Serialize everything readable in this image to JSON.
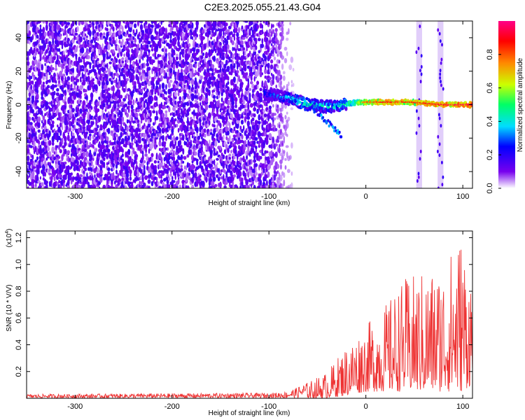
{
  "title": "C2E3.2025.055.21.43.G04",
  "chart_data": [
    {
      "type": "heatmap",
      "xlabel": "Height of straight line (km)",
      "ylabel": "Frequency (Hz)",
      "xlim": [
        -350,
        110
      ],
      "ylim": [
        -50,
        50
      ],
      "x_ticks": [
        -300,
        -200,
        -100,
        0,
        100
      ],
      "y_ticks": [
        -40,
        -20,
        0,
        20,
        40
      ],
      "colorbar": {
        "label": "Normalized spectral amplitude",
        "range": [
          0.0,
          1.0
        ],
        "ticks": [
          "0.0",
          "0.2",
          "0.4",
          "0.6",
          "0.8"
        ],
        "colormap": [
          "#ffffff",
          "#7700ee",
          "#0000ff",
          "#00ddff",
          "#00ff66",
          "#ccff00",
          "#ff8800",
          "#ff0000",
          "#ff0088"
        ]
      },
      "features": {
        "noise_region_x": [
          -350,
          -80
        ],
        "signal_track": [
          {
            "x": -105,
            "freq": 7,
            "amp": 0.35
          },
          {
            "x": -90,
            "freq": 5,
            "amp": 0.4
          },
          {
            "x": -75,
            "freq": 3,
            "amp": 0.5
          },
          {
            "x": -60,
            "freq": 0,
            "amp": 0.55
          },
          {
            "x": -45,
            "freq": -1,
            "amp": 0.5
          },
          {
            "x": -30,
            "freq": -1,
            "amp": 0.5
          },
          {
            "x": -15,
            "freq": 1,
            "amp": 0.6
          },
          {
            "x": 0,
            "freq": 1.5,
            "amp": 0.75
          },
          {
            "x": 20,
            "freq": 1.5,
            "amp": 0.85
          },
          {
            "x": 45,
            "freq": 1.5,
            "amp": 0.8
          },
          {
            "x": 80,
            "freq": 0,
            "amp": 0.9
          },
          {
            "x": 110,
            "freq": 0,
            "amp": 0.9
          }
        ],
        "vertical_bands_x": [
          [
            52,
            58
          ],
          [
            74,
            80
          ]
        ]
      }
    },
    {
      "type": "line",
      "xlabel": "Height of straight line (km)",
      "ylabel": "SNR (10 * V/V)",
      "y_multiplier": "(x10",
      "y_multiplier_exp": "4",
      "y_multiplier_close": ")",
      "xlim": [
        -350,
        110
      ],
      "ylim": [
        0,
        1.25
      ],
      "x_ticks": [
        -300,
        -200,
        -100,
        0,
        100
      ],
      "y_ticks": [
        "0.2",
        "0.4",
        "0.6",
        "0.8",
        "1.0",
        "1.2"
      ],
      "series": [
        {
          "color": "#ee3333",
          "envelope": [
            {
              "x": -350,
              "low": 0.0,
              "high": 0.03
            },
            {
              "x": -100,
              "low": 0.0,
              "high": 0.04
            },
            {
              "x": -80,
              "low": 0.0,
              "high": 0.05
            },
            {
              "x": -60,
              "low": 0.0,
              "high": 0.12
            },
            {
              "x": -40,
              "low": 0.0,
              "high": 0.2
            },
            {
              "x": -20,
              "low": 0.02,
              "high": 0.4
            },
            {
              "x": 0,
              "low": 0.05,
              "high": 0.55
            },
            {
              "x": 20,
              "low": 0.05,
              "high": 0.7
            },
            {
              "x": 40,
              "low": 0.05,
              "high": 0.9
            },
            {
              "x": 60,
              "low": 0.05,
              "high": 0.95
            },
            {
              "x": 80,
              "low": 0.05,
              "high": 1.0
            },
            {
              "x": 98,
              "low": 0.05,
              "high": 1.25
            },
            {
              "x": 110,
              "low": 0.1,
              "high": 0.9
            }
          ]
        }
      ]
    }
  ]
}
